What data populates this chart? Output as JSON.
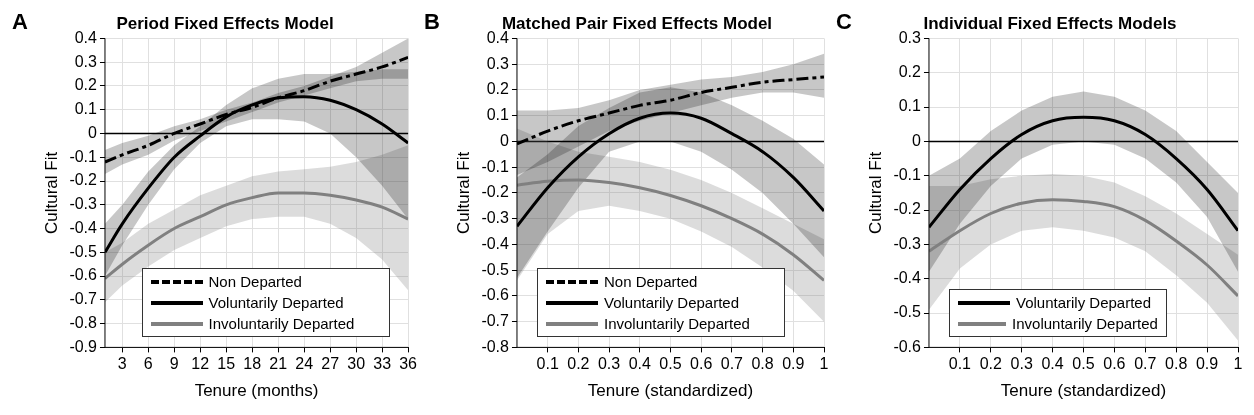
{
  "chart_data": [
    {
      "type": "line",
      "title": "Period Fixed Effects Model",
      "xlabel": "Tenure (months)",
      "ylabel": "Cultural Fit",
      "annotations": [
        "A"
      ],
      "xlim": [
        1,
        36
      ],
      "xticks": [
        3,
        6,
        9,
        12,
        15,
        18,
        21,
        24,
        27,
        30,
        33,
        36
      ],
      "ylim": [
        -0.9,
        0.4
      ],
      "yticks": [
        -0.9,
        -0.8,
        -0.7,
        -0.6,
        -0.5,
        -0.4,
        -0.3,
        -0.2,
        -0.1,
        0,
        0.1,
        0.2,
        0.3,
        0.4
      ],
      "grid": true,
      "legend": "bottom",
      "marker": "none",
      "ref_lines": [
        {
          "axis": "y",
          "value": 0,
          "color": "#000000"
        }
      ],
      "x": [
        1,
        3,
        6,
        9,
        12,
        15,
        18,
        21,
        24,
        27,
        30,
        33,
        36
      ],
      "series": [
        {
          "name": "Non Departed",
          "color": "#000000",
          "line_style": "dashed",
          "values": [
            -0.12,
            -0.09,
            -0.05,
            0.0,
            0.04,
            0.08,
            0.11,
            0.15,
            0.18,
            0.22,
            0.25,
            0.28,
            0.32
          ],
          "lower": [
            -0.17,
            -0.13,
            -0.09,
            -0.03,
            0.01,
            0.05,
            0.09,
            0.13,
            0.16,
            0.19,
            0.22,
            0.23,
            0.23
          ],
          "upper": [
            -0.07,
            -0.04,
            -0.01,
            0.03,
            0.06,
            0.1,
            0.13,
            0.17,
            0.2,
            0.24,
            0.28,
            0.34,
            0.4
          ]
        },
        {
          "name": "Voluntarily Departed",
          "color": "#000000",
          "line_style": "solid",
          "values": [
            -0.5,
            -0.38,
            -0.23,
            -0.1,
            -0.01,
            0.07,
            0.12,
            0.15,
            0.155,
            0.14,
            0.1,
            0.04,
            -0.04
          ],
          "lower": [
            -0.6,
            -0.47,
            -0.3,
            -0.15,
            -0.04,
            0.03,
            0.06,
            0.06,
            0.05,
            0.0,
            -0.1,
            -0.22,
            -0.36
          ],
          "upper": [
            -0.38,
            -0.3,
            -0.16,
            -0.05,
            0.03,
            0.12,
            0.19,
            0.23,
            0.25,
            0.25,
            0.26,
            0.27,
            0.27
          ]
        },
        {
          "name": "Involuntarily Departed",
          "color": "#808080",
          "line_style": "solid",
          "values": [
            -0.61,
            -0.55,
            -0.47,
            -0.4,
            -0.35,
            -0.3,
            -0.27,
            -0.25,
            -0.25,
            -0.26,
            -0.28,
            -0.31,
            -0.36
          ],
          "lower": [
            -0.71,
            -0.64,
            -0.56,
            -0.49,
            -0.44,
            -0.39,
            -0.36,
            -0.35,
            -0.35,
            -0.38,
            -0.44,
            -0.53,
            -0.66
          ],
          "upper": [
            -0.5,
            -0.46,
            -0.38,
            -0.32,
            -0.26,
            -0.22,
            -0.18,
            -0.16,
            -0.15,
            -0.14,
            -0.12,
            -0.09,
            -0.05
          ]
        }
      ]
    },
    {
      "type": "line",
      "title": "Matched Pair Fixed Effects Model",
      "xlabel": "Tenure (standardized)",
      "ylabel": "Cultural Fit",
      "annotations": [
        "B"
      ],
      "xlim": [
        0,
        1
      ],
      "xticks": [
        0.1,
        0.2,
        0.3,
        0.4,
        0.5,
        0.6,
        0.7,
        0.8,
        0.9,
        1
      ],
      "ylim": [
        -0.8,
        0.4
      ],
      "yticks": [
        -0.8,
        -0.7,
        -0.6,
        -0.5,
        -0.4,
        -0.3,
        -0.2,
        -0.1,
        0,
        0.1,
        0.2,
        0.3,
        0.4
      ],
      "grid": true,
      "legend": "bottom left",
      "marker": "none",
      "ref_lines": [
        {
          "axis": "y",
          "value": 0,
          "color": "#000000"
        }
      ],
      "x": [
        0,
        0.1,
        0.2,
        0.3,
        0.4,
        0.5,
        0.6,
        0.7,
        0.8,
        0.9,
        1
      ],
      "series": [
        {
          "name": "Non Departed",
          "color": "#000000",
          "line_style": "dashed",
          "values": [
            -0.01,
            0.04,
            0.08,
            0.11,
            0.14,
            0.16,
            0.19,
            0.21,
            0.23,
            0.24,
            0.25
          ],
          "lower": [
            -0.13,
            -0.08,
            -0.02,
            0.04,
            0.08,
            0.11,
            0.14,
            0.17,
            0.19,
            0.19,
            0.17
          ],
          "upper": [
            0.12,
            0.12,
            0.13,
            0.16,
            0.2,
            0.22,
            0.24,
            0.25,
            0.27,
            0.3,
            0.34
          ]
        },
        {
          "name": "Voluntarily Departed",
          "color": "#000000",
          "line_style": "solid",
          "values": [
            -0.33,
            -0.18,
            -0.06,
            0.03,
            0.09,
            0.11,
            0.09,
            0.03,
            -0.04,
            -0.14,
            -0.27
          ],
          "lower": [
            -0.53,
            -0.35,
            -0.18,
            -0.04,
            0.0,
            0.0,
            -0.04,
            -0.11,
            -0.2,
            -0.32,
            -0.45
          ],
          "upper": [
            -0.14,
            -0.05,
            0.06,
            0.13,
            0.19,
            0.21,
            0.19,
            0.14,
            0.08,
            0.01,
            -0.09
          ]
        },
        {
          "name": "Involuntarily Departed",
          "color": "#808080",
          "line_style": "solid",
          "values": [
            -0.17,
            -0.155,
            -0.15,
            -0.16,
            -0.18,
            -0.21,
            -0.25,
            -0.3,
            -0.36,
            -0.44,
            -0.54
          ],
          "lower": [
            -0.54,
            -0.36,
            -0.27,
            -0.25,
            -0.27,
            -0.3,
            -0.35,
            -0.41,
            -0.49,
            -0.58,
            -0.7
          ],
          "upper": [
            0.05,
            0.0,
            -0.04,
            -0.06,
            -0.08,
            -0.11,
            -0.15,
            -0.2,
            -0.26,
            -0.32,
            -0.38
          ]
        }
      ]
    },
    {
      "type": "line",
      "title": "Individual Fixed Effects Models",
      "xlabel": "Tenure (standardized)",
      "ylabel": "Cultural Fit",
      "annotations": [
        "C"
      ],
      "xlim": [
        0,
        1
      ],
      "xticks": [
        0.1,
        0.2,
        0.3,
        0.4,
        0.5,
        0.6,
        0.7,
        0.8,
        0.9,
        1
      ],
      "ylim": [
        -0.6,
        0.3
      ],
      "yticks": [
        -0.6,
        -0.5,
        -0.4,
        -0.3,
        -0.2,
        -0.1,
        0,
        0.1,
        0.2,
        0.3
      ],
      "grid": true,
      "legend": "bottom left",
      "marker": "none",
      "ref_lines": [
        {
          "axis": "y",
          "value": 0,
          "color": "#000000"
        }
      ],
      "x": [
        0,
        0.1,
        0.2,
        0.3,
        0.4,
        0.5,
        0.6,
        0.7,
        0.8,
        0.9,
        1
      ],
      "series": [
        {
          "name": "Voluntarily Departed",
          "color": "#000000",
          "line_style": "solid",
          "values": [
            -0.25,
            -0.14,
            -0.05,
            0.02,
            0.06,
            0.07,
            0.06,
            0.02,
            -0.05,
            -0.14,
            -0.26
          ],
          "lower": [
            -0.38,
            -0.24,
            -0.13,
            -0.05,
            -0.01,
            0.0,
            -0.01,
            -0.05,
            -0.12,
            -0.22,
            -0.38
          ],
          "upper": [
            -0.1,
            -0.05,
            0.03,
            0.09,
            0.13,
            0.145,
            0.13,
            0.09,
            0.03,
            -0.06,
            -0.15
          ]
        },
        {
          "name": "Involuntarily Departed",
          "color": "#808080",
          "line_style": "solid",
          "values": [
            -0.32,
            -0.26,
            -0.21,
            -0.18,
            -0.17,
            -0.175,
            -0.19,
            -0.23,
            -0.29,
            -0.36,
            -0.45
          ],
          "lower": [
            -0.49,
            -0.37,
            -0.3,
            -0.26,
            -0.25,
            -0.26,
            -0.28,
            -0.32,
            -0.39,
            -0.47,
            -0.58
          ],
          "upper": [
            -0.13,
            -0.13,
            -0.11,
            -0.1,
            -0.095,
            -0.1,
            -0.12,
            -0.16,
            -0.21,
            -0.27,
            -0.33
          ]
        }
      ]
    }
  ]
}
